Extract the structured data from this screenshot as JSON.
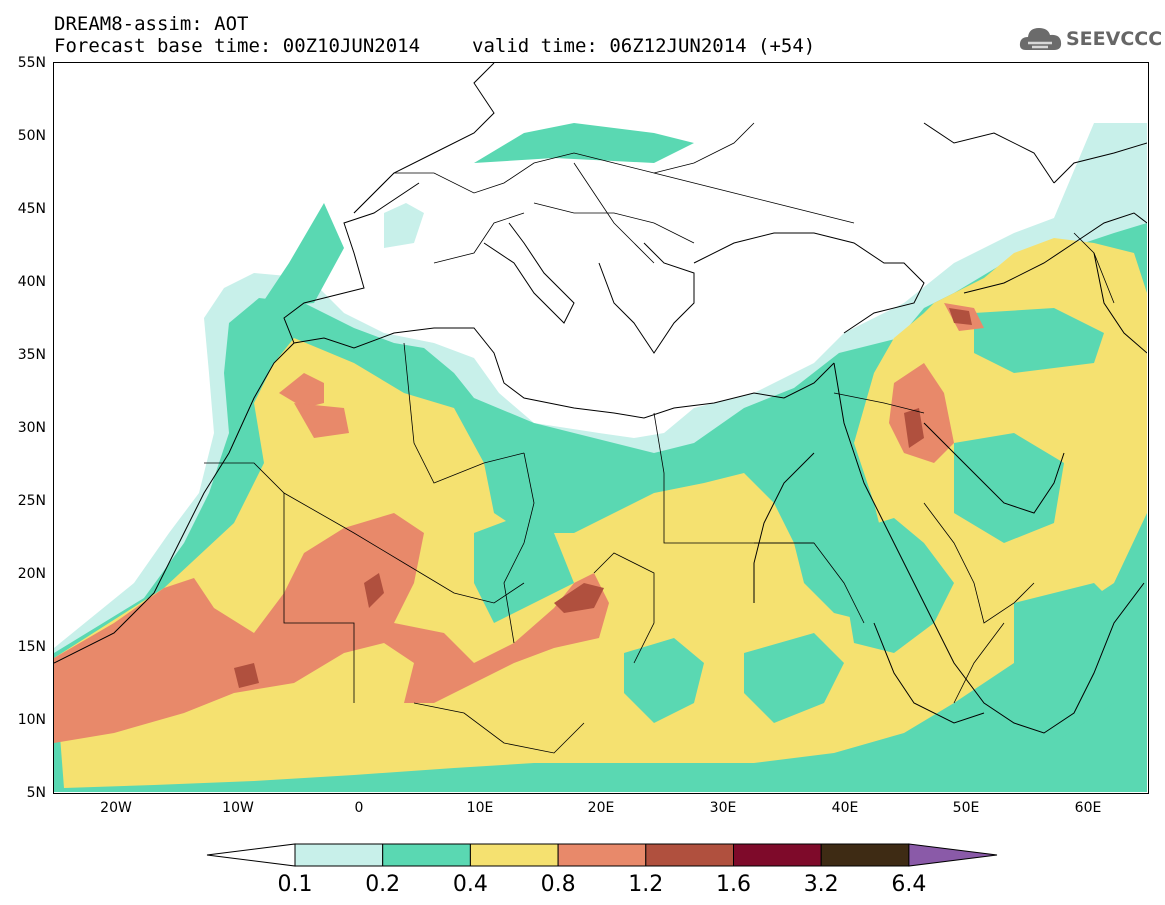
{
  "header": {
    "title": "DREAM8-assim: AOT",
    "base_time": "Forecast base time: 00Z10JUN2014",
    "valid_time": "valid time: 06Z12JUN2014 (+54)"
  },
  "logo": {
    "text": "SEEVCCC",
    "icon": "cloud-icon"
  },
  "map": {
    "latitude_labels": [
      "55N",
      "50N",
      "45N",
      "40N",
      "35N",
      "30N",
      "25N",
      "20N",
      "15N",
      "10N",
      "5N"
    ],
    "longitude_labels": [
      "20W",
      "10W",
      "0",
      "10E",
      "20E",
      "30E",
      "40E",
      "50E",
      "60E"
    ],
    "lon_range": [
      -25,
      65
    ],
    "lat_range": [
      5,
      55
    ]
  },
  "legend": {
    "labels": [
      "0.1",
      "0.2",
      "0.4",
      "0.8",
      "1.2",
      "1.6",
      "3.2",
      "6.4"
    ],
    "colors": [
      "#c8f0ea",
      "#5ad8b2",
      "#f5e170",
      "#e8896a",
      "#b0503e",
      "#7e0a2a",
      "#3e2b14",
      "#8a5aa8"
    ],
    "below_color": "#ffffff",
    "above_color": "#8a5aa8"
  }
}
